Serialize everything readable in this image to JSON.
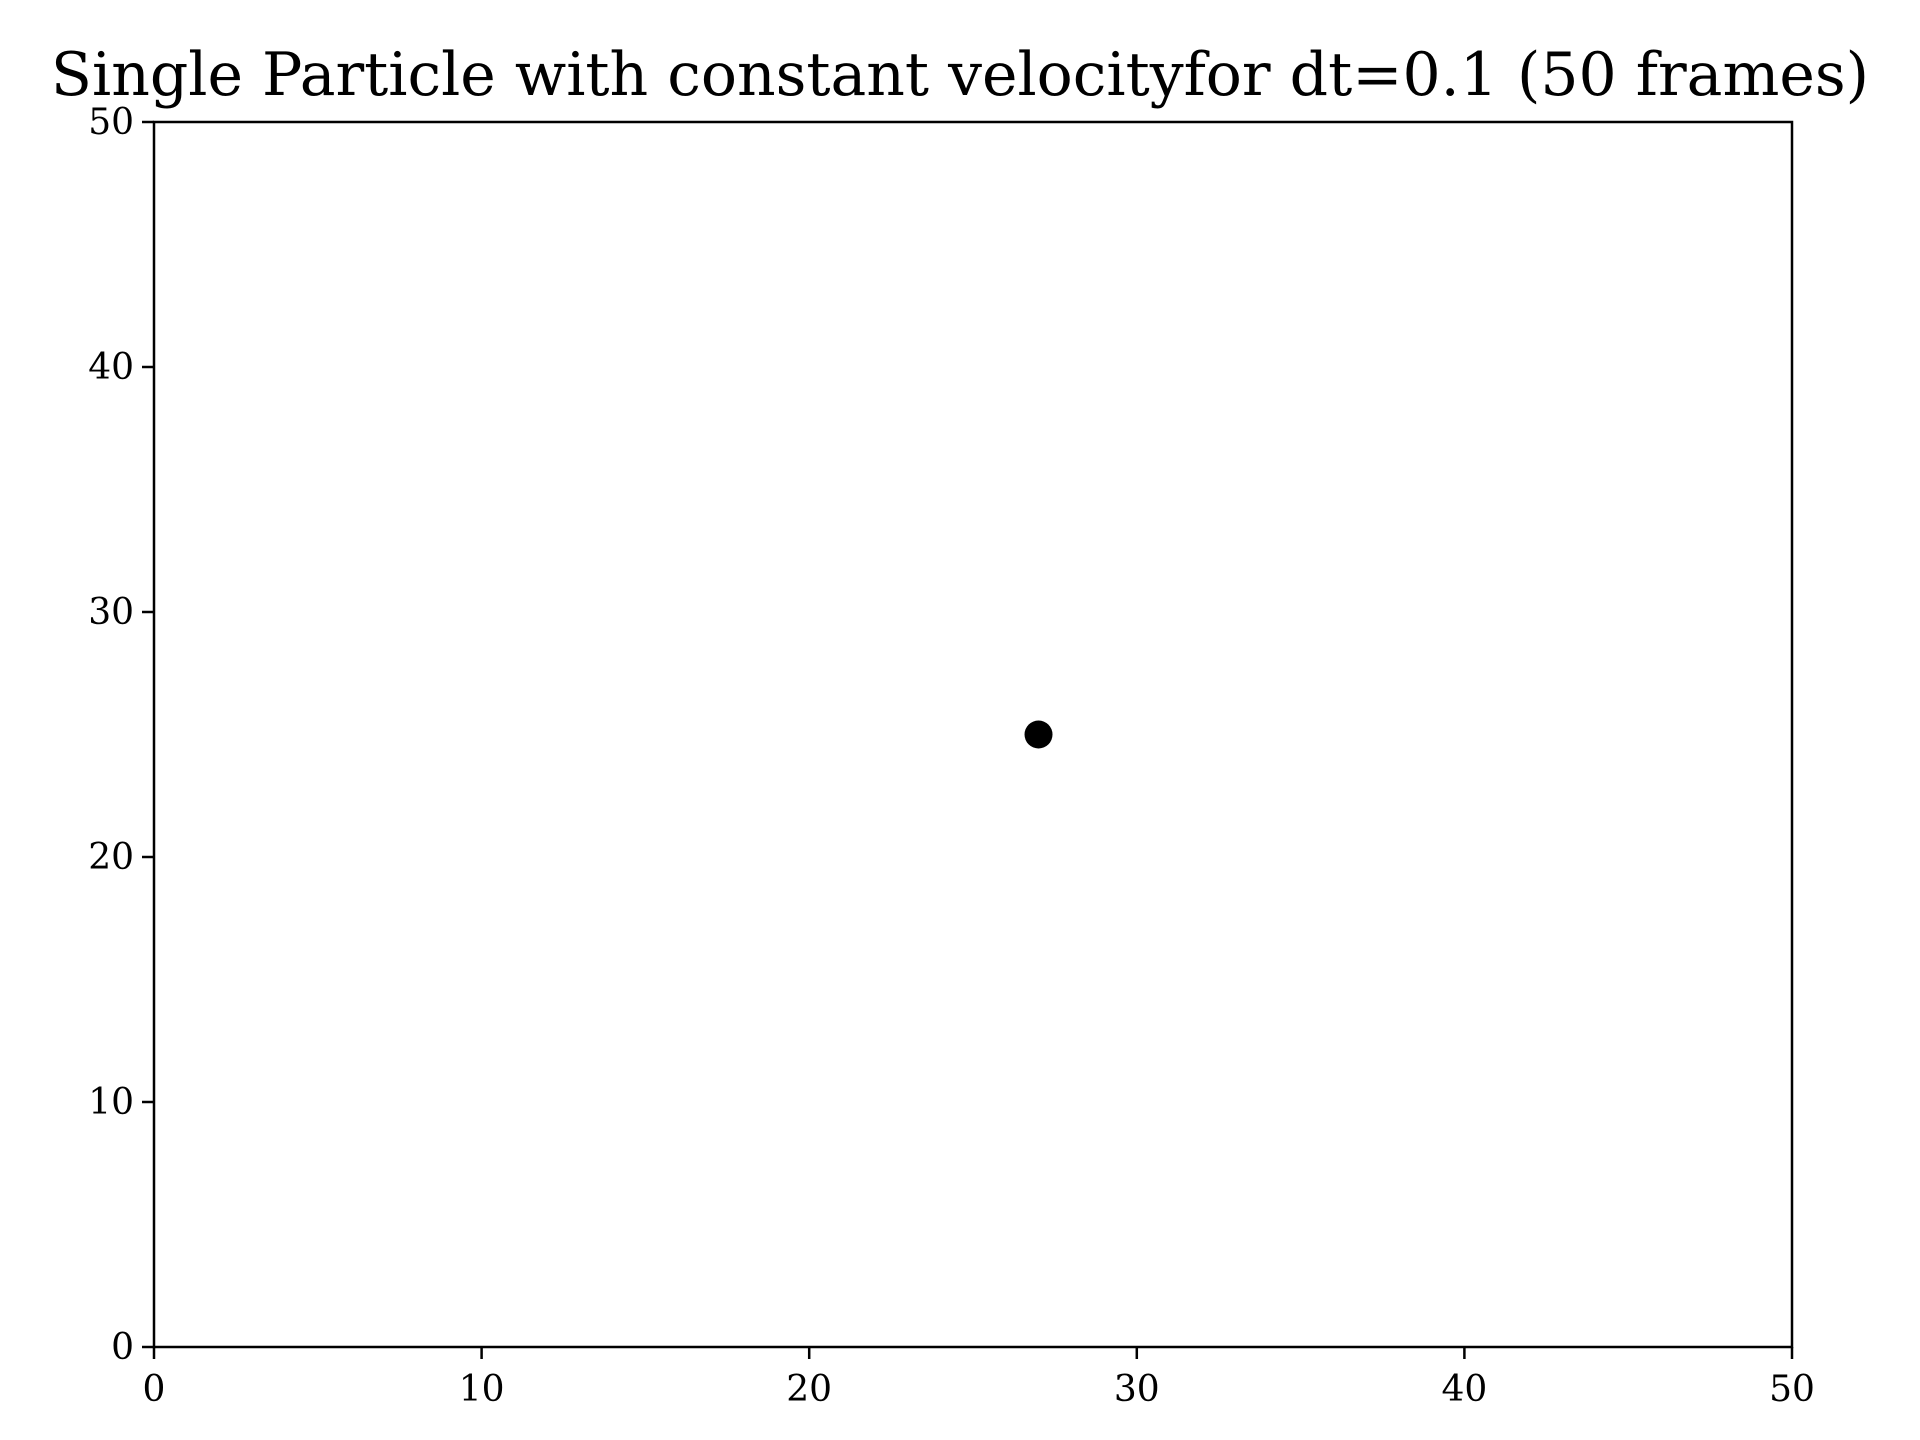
{
  "chart_data": {
    "type": "scatter",
    "title": "Single Particle with constant velocityfor dt=0.1 (50 frames)",
    "xlabel": "",
    "ylabel": "",
    "xlim": [
      0,
      50
    ],
    "ylim": [
      0,
      50
    ],
    "x_ticks": [
      0,
      10,
      20,
      30,
      40,
      50
    ],
    "y_ticks": [
      0,
      10,
      20,
      30,
      40,
      50
    ],
    "grid": false,
    "series": [
      {
        "points": [
          {
            "x": 27,
            "y": 25
          }
        ],
        "color": "#000000",
        "marker": "circle"
      }
    ]
  }
}
